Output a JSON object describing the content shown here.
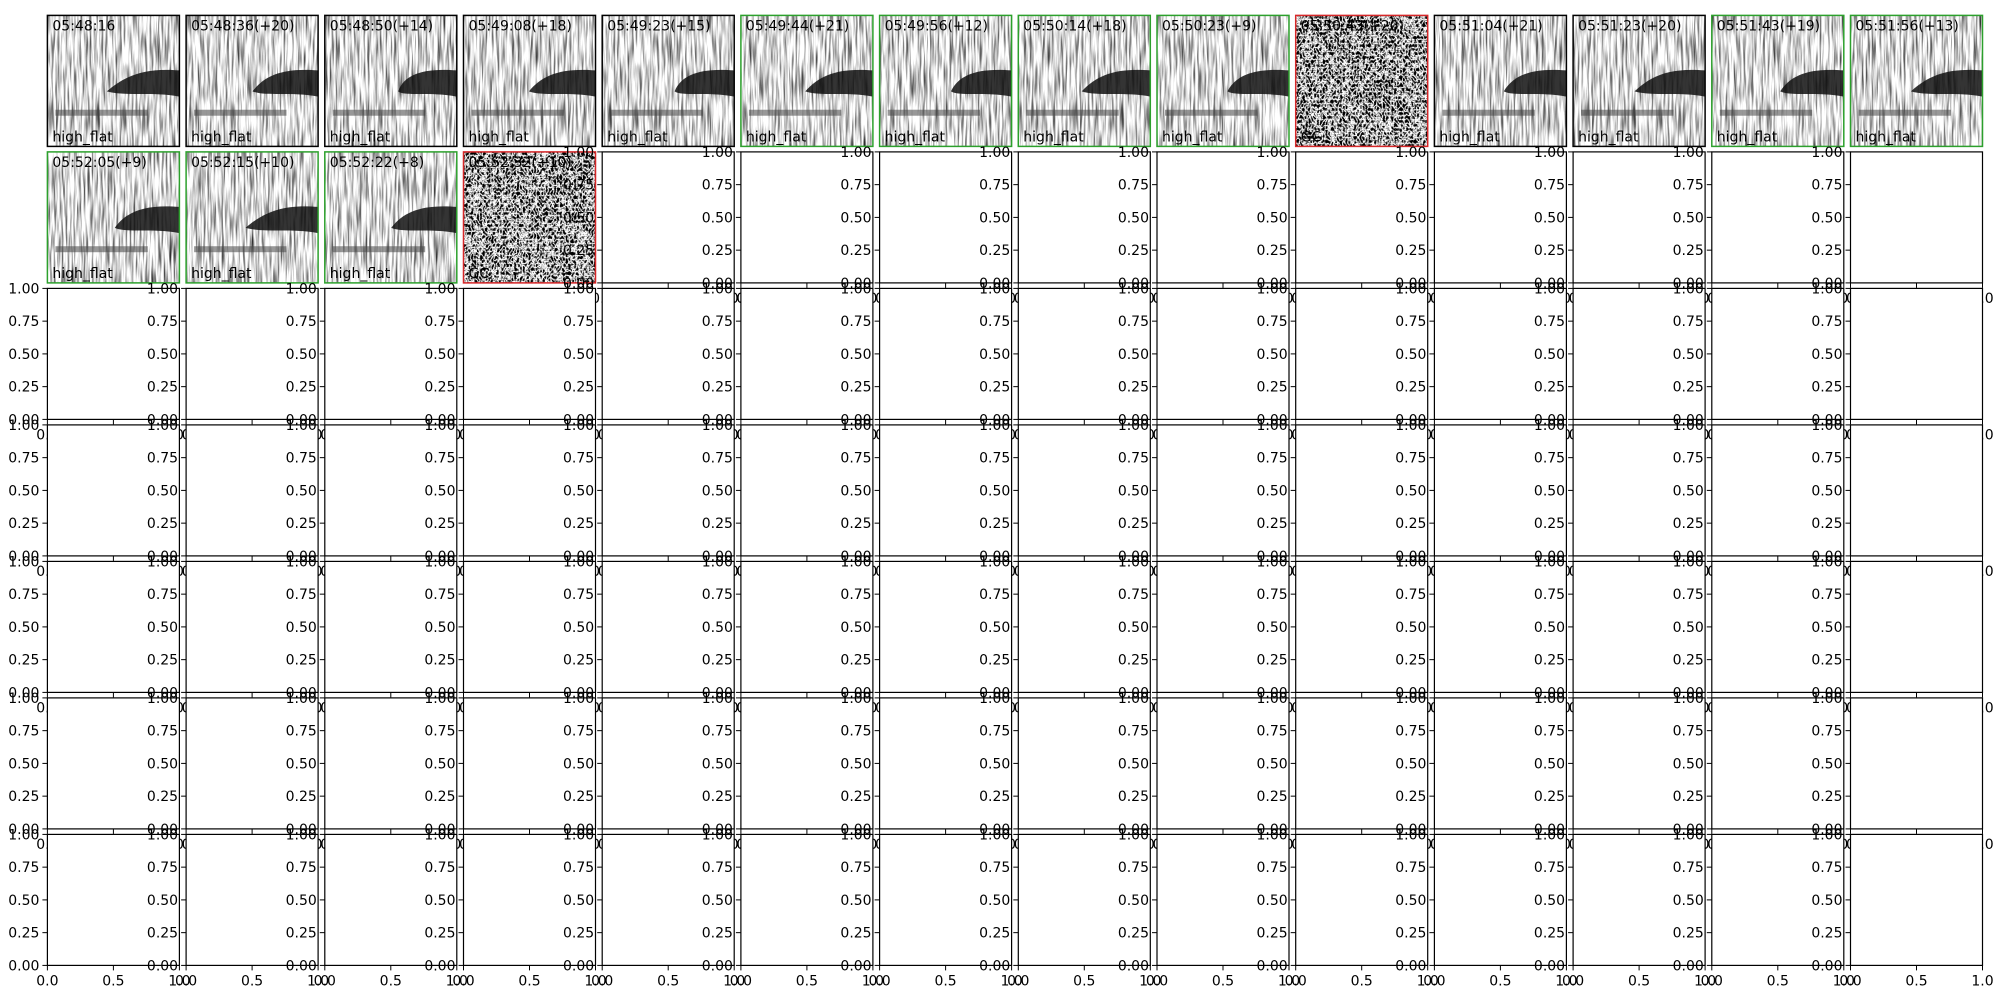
{
  "panels": [
    {
      "time": "05:48:16",
      "label": "high_flat",
      "border": "#000000"
    },
    {
      "time": "05:48:36(+20)",
      "label": "high_flat",
      "border": "#000000"
    },
    {
      "time": "05:48:50(+14)",
      "label": "high_flat",
      "border": "#000000"
    },
    {
      "time": "05:49:08(+18)",
      "label": "high_flat",
      "border": "#000000"
    },
    {
      "time": "05:49:23(+15)",
      "label": "high_flat",
      "border": "#000000"
    },
    {
      "time": "05:49:44(+21)",
      "label": "high_flat",
      "border": "#2ca02c"
    },
    {
      "time": "05:49:56(+12)",
      "label": "high_flat",
      "border": "#2ca02c"
    },
    {
      "time": "05:50:14(+18)",
      "label": "high_flat",
      "border": "#2ca02c"
    },
    {
      "time": "05:50:23(+9)",
      "label": "high_flat",
      "border": "#2ca02c"
    },
    {
      "time": "05:50:43(+20)",
      "label": "GC",
      "border": "#d62728"
    },
    {
      "time": "05:51:04(+21)",
      "label": "high_flat",
      "border": "#000000"
    },
    {
      "time": "05:51:23(+20)",
      "label": "high_flat",
      "border": "#000000"
    },
    {
      "time": "05:51:43(+19)",
      "label": "high_flat",
      "border": "#2ca02c"
    },
    {
      "time": "05:51:56(+13)",
      "label": "high_flat",
      "border": "#2ca02c"
    },
    {
      "time": "05:52:05(+9)",
      "label": "high_flat",
      "border": "#2ca02c"
    },
    {
      "time": "05:52:15(+10)",
      "label": "high_flat",
      "border": "#2ca02c"
    },
    {
      "time": "05:52:22(+8)",
      "label": "high_flat",
      "border": "#2ca02c"
    },
    {
      "time": "05:52:32(+10)",
      "label": "GC",
      "border": "#d62728"
    }
  ],
  "axes": {
    "xlim": [
      0,
      1
    ],
    "ylim": [
      0,
      1
    ],
    "xticks": [
      {
        "value": 0,
        "label": "0.0"
      },
      0.5,
      {
        "value": 1,
        "label": "1.0"
      }
    ],
    "yticks": [
      {
        "value": 0,
        "label": "0.00"
      },
      0.25,
      {
        "value": 0.5,
        "label": "0.50"
      },
      0.75,
      {
        "value": 1,
        "label": "1.00"
      }
    ],
    "rows": 7,
    "cols": 14
  }
}
